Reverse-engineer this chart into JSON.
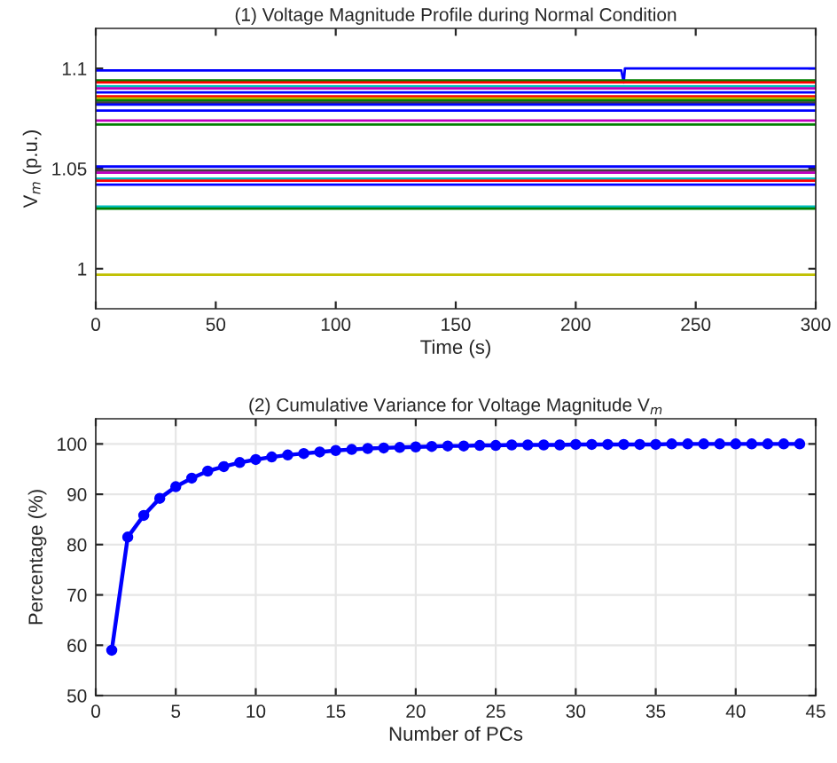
{
  "chart_data": [
    {
      "type": "line",
      "title": "(1) Voltage Magnitude Profile during Normal Condition",
      "xlabel": "Time (s)",
      "ylabel": "V$_{m}$ (p.u.)",
      "x": [
        0,
        300
      ],
      "series": [
        {
          "color": "#0000ff",
          "x": [
            0,
            219,
            220,
            220.5,
            300
          ],
          "values": [
            1.099,
            1.099,
            1.093,
            1.1,
            1.1
          ]
        },
        {
          "color": "#008000",
          "values": [
            1.094,
            1.094
          ]
        },
        {
          "color": "#ff0000",
          "values": [
            1.093,
            1.093
          ]
        },
        {
          "color": "#00bfbf",
          "values": [
            1.091,
            1.091
          ]
        },
        {
          "color": "#bf00bf",
          "values": [
            1.09,
            1.09
          ]
        },
        {
          "color": "#0000ff",
          "values": [
            1.088,
            1.088
          ]
        },
        {
          "color": "#ff0000",
          "values": [
            1.086,
            1.086
          ]
        },
        {
          "color": "#bfbf00",
          "values": [
            1.085,
            1.085
          ]
        },
        {
          "color": "#008000",
          "values": [
            1.084,
            1.084
          ]
        },
        {
          "color": "#404040",
          "values": [
            1.083,
            1.083
          ]
        },
        {
          "color": "#0000ff",
          "values": [
            1.082,
            1.082
          ]
        },
        {
          "color": "#0000ff",
          "values": [
            1.079,
            1.079
          ]
        },
        {
          "color": "#bf00bf",
          "values": [
            1.074,
            1.074
          ]
        },
        {
          "color": "#008000",
          "values": [
            1.072,
            1.072
          ]
        },
        {
          "color": "#0000ff",
          "values": [
            1.051,
            1.051
          ]
        },
        {
          "color": "#404040",
          "values": [
            1.049,
            1.049
          ]
        },
        {
          "color": "#bf00bf",
          "values": [
            1.048,
            1.048
          ]
        },
        {
          "color": "#00bfbf",
          "values": [
            1.045,
            1.045
          ]
        },
        {
          "color": "#ff0000",
          "values": [
            1.044,
            1.044
          ]
        },
        {
          "color": "#0000ff",
          "values": [
            1.042,
            1.042
          ]
        },
        {
          "color": "#00bfbf",
          "values": [
            1.031,
            1.031
          ]
        },
        {
          "color": "#008000",
          "values": [
            1.03,
            1.03
          ]
        },
        {
          "color": "#bfbf00",
          "values": [
            0.997,
            0.997
          ]
        }
      ],
      "xlim": [
        0,
        300
      ],
      "xticks": [
        0,
        50,
        100,
        150,
        200,
        250,
        300
      ],
      "ylim": [
        0.98,
        1.12
      ],
      "yticks": [
        1,
        1.05,
        1.1
      ],
      "grid": false,
      "marker": "none",
      "line_style": "solid"
    },
    {
      "type": "line",
      "title": "(2) Cumulative Variance for Voltage Magnitude V$_{m}$",
      "xlabel": "Number of PCs",
      "ylabel": "Percentage (%)",
      "x": [
        1,
        2,
        3,
        4,
        5,
        6,
        7,
        8,
        9,
        10,
        11,
        12,
        13,
        14,
        15,
        16,
        17,
        18,
        19,
        20,
        21,
        22,
        23,
        24,
        25,
        26,
        27,
        28,
        29,
        30,
        31,
        32,
        33,
        34,
        35,
        36,
        37,
        38,
        39,
        40,
        41,
        42,
        43,
        44
      ],
      "series": [
        {
          "color": "#0000ff",
          "values": [
            59,
            81.5,
            85.8,
            89.2,
            91.5,
            93.2,
            94.6,
            95.5,
            96.3,
            96.9,
            97.4,
            97.8,
            98.1,
            98.4,
            98.7,
            98.9,
            99.1,
            99.2,
            99.3,
            99.4,
            99.5,
            99.6,
            99.6,
            99.7,
            99.7,
            99.8,
            99.8,
            99.8,
            99.8,
            99.9,
            99.9,
            99.9,
            99.9,
            99.9,
            99.9,
            100,
            100,
            100,
            100,
            100,
            100,
            100,
            100,
            100
          ]
        }
      ],
      "xlim": [
        0,
        45
      ],
      "xticks": [
        0,
        5,
        10,
        15,
        20,
        25,
        30,
        35,
        40,
        45
      ],
      "ylim": [
        50,
        105
      ],
      "yticks": [
        50,
        60,
        70,
        80,
        90,
        100
      ],
      "grid": true,
      "marker": "circle",
      "line_style": "solid"
    }
  ]
}
